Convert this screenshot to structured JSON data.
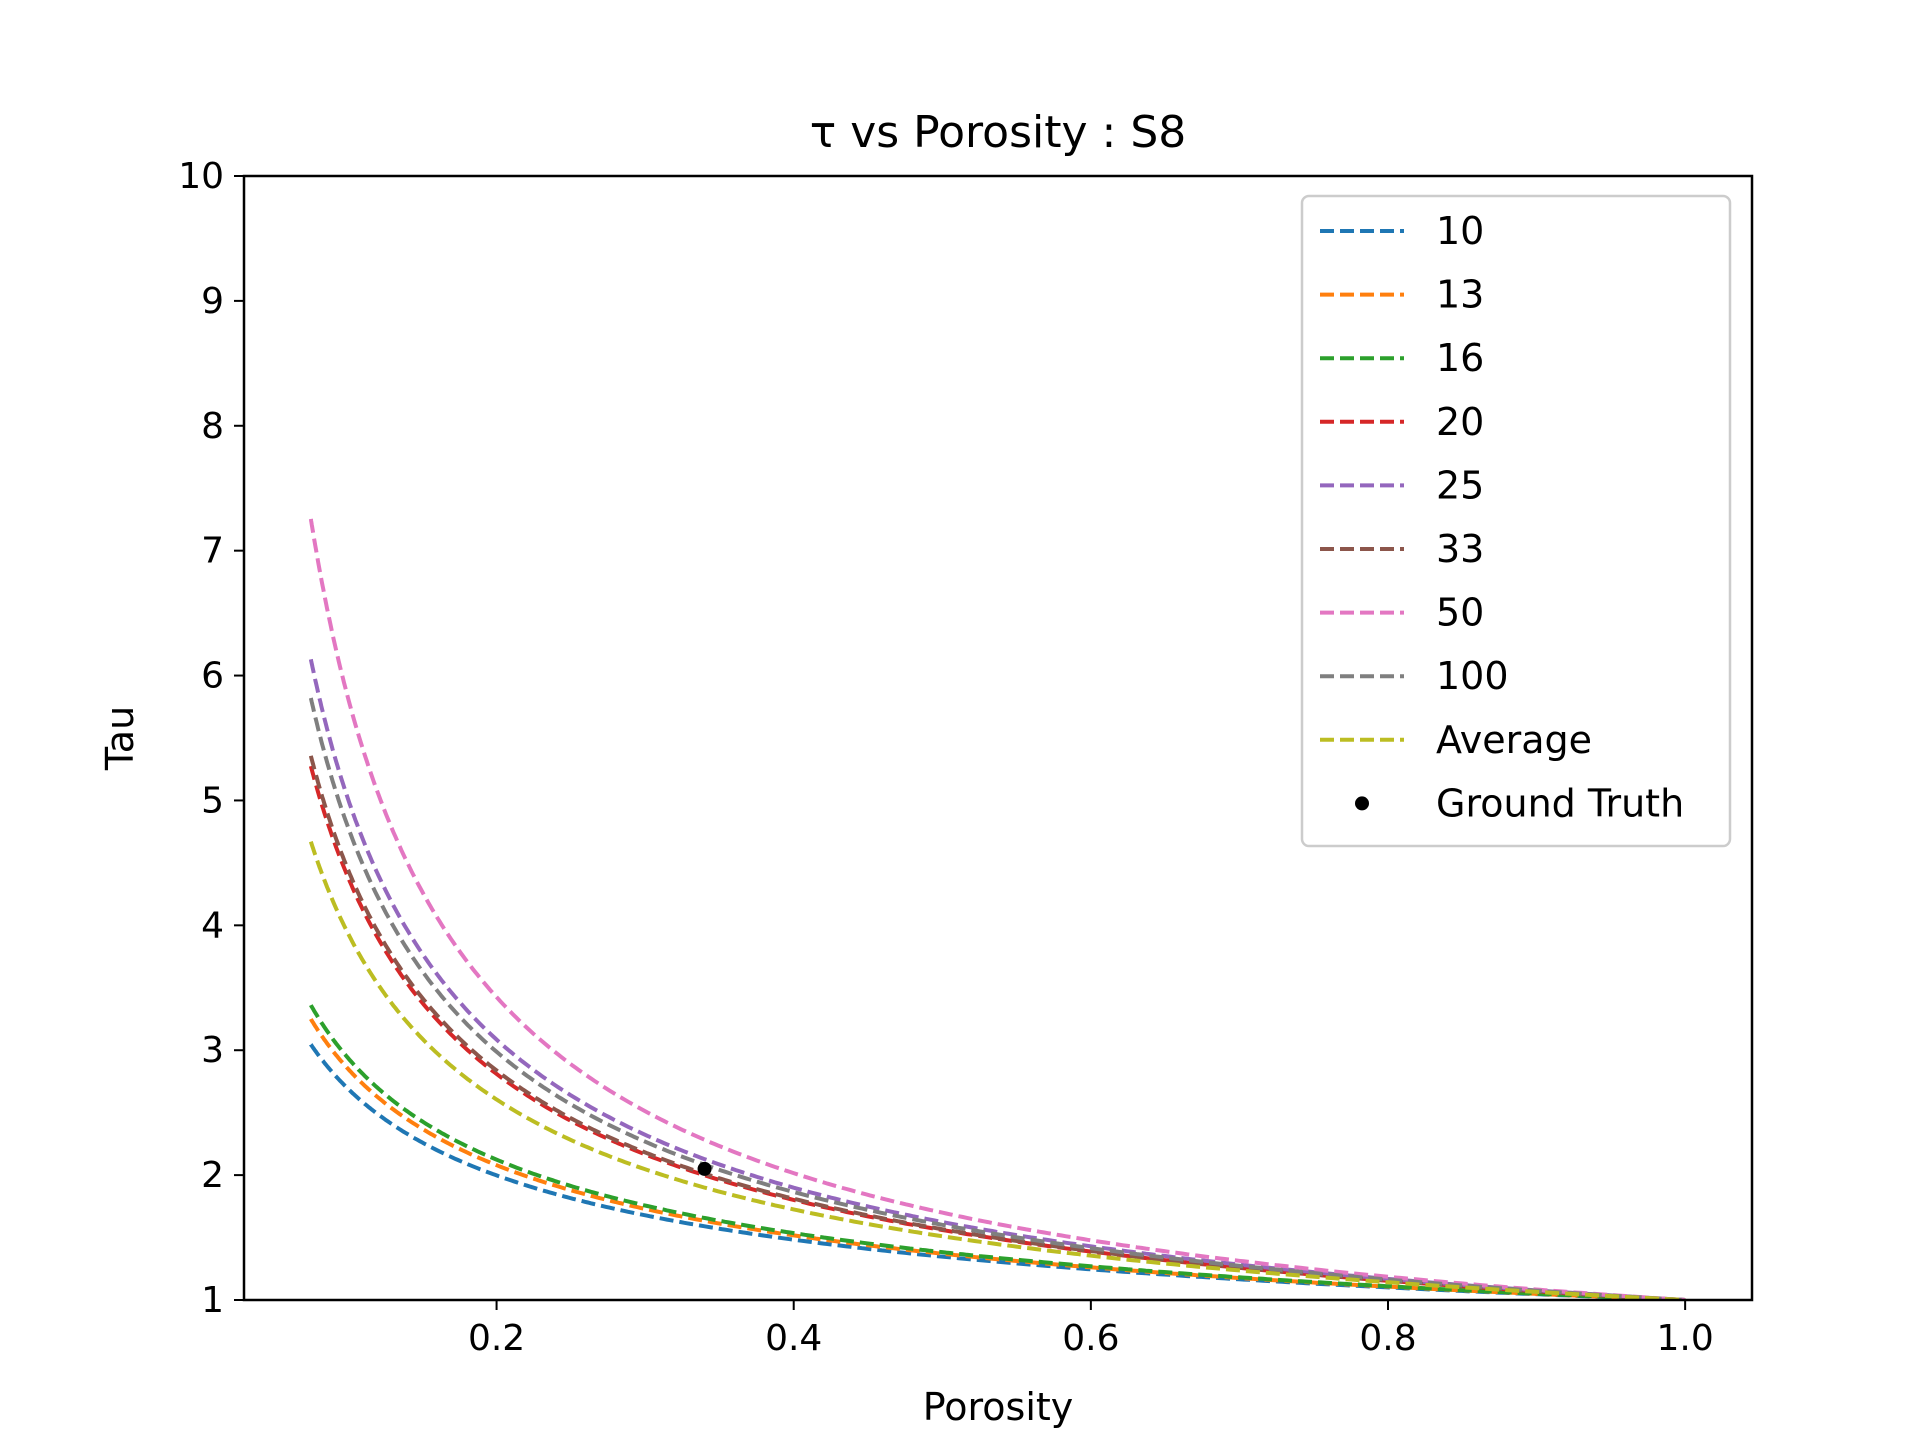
{
  "chart_data": {
    "type": "line",
    "title": "τ vs Porosity : S8",
    "xlabel": "Porosity",
    "ylabel": "Tau",
    "xlim": [
      0.03,
      1.045
    ],
    "ylim": [
      1,
      10
    ],
    "xticks": [
      0.2,
      0.4,
      0.6,
      0.8,
      1.0
    ],
    "xtick_labels": [
      "0.2",
      "0.4",
      "0.6",
      "0.8",
      "1.0"
    ],
    "yticks": [
      1,
      2,
      3,
      4,
      5,
      6,
      7,
      8,
      9,
      10
    ],
    "ytick_labels": [
      "1",
      "2",
      "3",
      "4",
      "5",
      "6",
      "7",
      "8",
      "9",
      "10"
    ],
    "grid": false,
    "legend_position": "top-right",
    "x_range": [
      0.075,
      1.0
    ],
    "series": [
      {
        "name": "10",
        "color": "#1f77b4",
        "style": "dashed",
        "model": "tau = porosity^(-a)",
        "exponent": 0.43
      },
      {
        "name": "13",
        "color": "#ff7f0e",
        "style": "dashed",
        "model": "tau = porosity^(-a)",
        "exponent": 0.455
      },
      {
        "name": "16",
        "color": "#2ca02c",
        "style": "dashed",
        "model": "tau = porosity^(-a)",
        "exponent": 0.468
      },
      {
        "name": "20",
        "color": "#d62728",
        "style": "dashed",
        "model": "tau = porosity^(-a)",
        "exponent": 0.642
      },
      {
        "name": "25",
        "color": "#9467bd",
        "style": "dashed",
        "model": "tau = porosity^(-a)",
        "exponent": 0.7
      },
      {
        "name": "33",
        "color": "#8c564b",
        "style": "dashed",
        "model": "tau = porosity^(-a)",
        "exponent": 0.648
      },
      {
        "name": "50",
        "color": "#e377c2",
        "style": "dashed",
        "model": "tau = porosity^(-a)",
        "exponent": 0.765
      },
      {
        "name": "100",
        "color": "#7f7f7f",
        "style": "dashed",
        "model": "tau = porosity^(-a)",
        "exponent": 0.68
      },
      {
        "name": "Average",
        "color": "#bcbd22",
        "style": "dashed",
        "model": "tau = porosity^(-a)",
        "exponent": 0.595
      }
    ],
    "points": [
      {
        "name": "Ground Truth",
        "color": "#000000",
        "x": 0.34,
        "y": 2.05
      }
    ]
  }
}
